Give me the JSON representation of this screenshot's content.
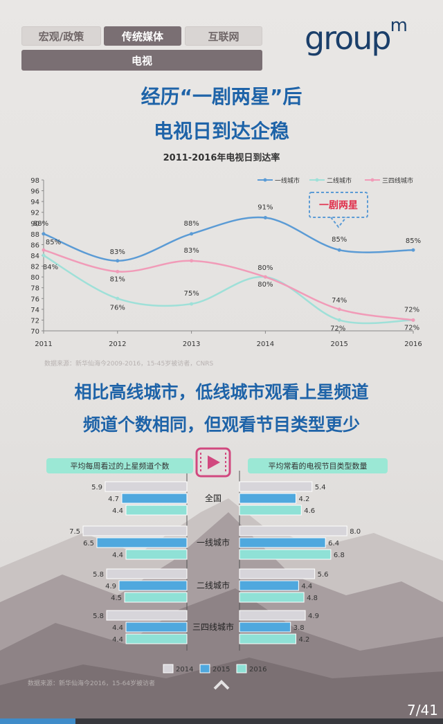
{
  "tabs": [
    {
      "label": "宏观/政策",
      "active": false
    },
    {
      "label": "传统媒体",
      "active": true
    },
    {
      "label": "互联网",
      "active": false
    }
  ],
  "subtab": "电视",
  "logo": {
    "text": "group",
    "sup": "m"
  },
  "headline1": {
    "line1": "经历“一剧两星”后",
    "line2": "电视日到达企稳"
  },
  "headline2": {
    "line1": "相比高线城市，低线城市观看上星频道",
    "line2": "频道个数相同，但观看节目类型更少"
  },
  "source1": "数据来源：新华仙海今2009-2016，15-45岁被访者，CNRS",
  "source2": "数据来源：新华仙海今2016，15-64岁被访者",
  "page": "7/41",
  "progress": 0.17,
  "chart_data": [
    {
      "type": "line",
      "title": "2011-2016年电视日到达率",
      "x": [
        "2011",
        "2012",
        "2013",
        "2014",
        "2015",
        "2016"
      ],
      "ylim": [
        70,
        98
      ],
      "yticks": [
        70,
        72,
        74,
        76,
        78,
        80,
        82,
        84,
        86,
        88,
        90,
        92,
        94,
        96,
        98
      ],
      "legend_position": "top-right",
      "series": [
        {
          "name": "一线城市",
          "color": "#5b9bd5",
          "values": [
            88,
            83,
            88,
            91,
            85,
            85
          ],
          "labels": [
            "88%",
            "83%",
            "88%",
            "91%",
            "85%",
            "85%"
          ]
        },
        {
          "name": "二线城市",
          "color": "#9ee0d8",
          "values": [
            84,
            76,
            75,
            80,
            72,
            72
          ],
          "labels": [
            "84%",
            "76%",
            "75%",
            "80%",
            "72%",
            "72%"
          ]
        },
        {
          "name": "三四线城市",
          "color": "#f19bb8",
          "values": [
            85,
            81,
            83,
            80,
            74,
            72
          ],
          "labels": [
            "85%",
            "81%",
            "83%",
            "80%",
            "74%",
            "72%"
          ]
        }
      ],
      "annotation": "一剧两星"
    },
    {
      "type": "bar",
      "title_left": "平均每周看过的上星频道个数",
      "title_right": "平均常看的电视节目类型数量",
      "categories": [
        "全国",
        "一线城市",
        "二线城市",
        "三四线城市"
      ],
      "series_names": [
        "2014",
        "2015",
        "2016"
      ],
      "series_colors": [
        "#d7d5da",
        "#4fa8de",
        "#8fe1d6"
      ],
      "left_values": [
        [
          5.9,
          4.7,
          4.4
        ],
        [
          7.5,
          6.5,
          4.4
        ],
        [
          5.8,
          4.9,
          4.5
        ],
        [
          5.8,
          4.4,
          4.4
        ]
      ],
      "right_values": [
        [
          5.4,
          4.2,
          4.6
        ],
        [
          8.0,
          6.4,
          6.8
        ],
        [
          5.6,
          4.4,
          4.8
        ],
        [
          4.9,
          3.8,
          4.2
        ]
      ],
      "left_labels": [
        [
          "5.9",
          "4.7",
          "4.4"
        ],
        [
          "7.5",
          "6.5",
          "4.4"
        ],
        [
          "5.8",
          "4.9",
          "4.5"
        ],
        [
          "5.8",
          "4.4",
          "4.4"
        ]
      ],
      "right_labels": [
        [
          "5.4",
          "4.2",
          "4.6"
        ],
        [
          "8.0",
          "6.4",
          "6.8"
        ],
        [
          "5.6",
          "4.4",
          "4.8"
        ],
        [
          "4.9",
          "3.8",
          "4.2"
        ]
      ]
    }
  ]
}
